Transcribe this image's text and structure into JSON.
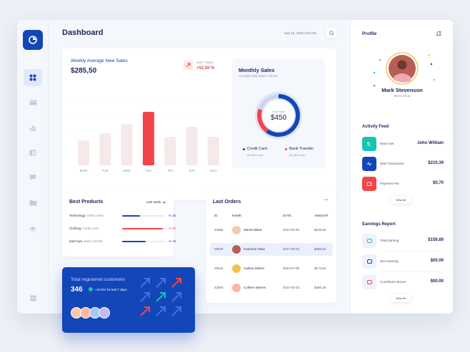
{
  "header": {
    "title": "Dashboard",
    "date": "Sep 12, 2020 3:53 AM"
  },
  "sidebar": {
    "items": [
      {
        "icon": "grid-icon",
        "active": true
      },
      {
        "icon": "card-icon"
      },
      {
        "icon": "bar-chart-icon"
      },
      {
        "icon": "layout-icon"
      },
      {
        "icon": "chat-icon"
      },
      {
        "icon": "folder-icon"
      },
      {
        "icon": "layers-icon"
      },
      {
        "icon": "logout-icon"
      }
    ]
  },
  "weekly": {
    "title": "Weekly Average New Sales",
    "amount": "$285,50",
    "last_label": "Last 7 Days",
    "last_change": "+52,50 %",
    "chart_data": {
      "type": "bar",
      "categories": [
        "MON",
        "TUE",
        "WED",
        "THU",
        "FRI",
        "SAT",
        "SUN"
      ],
      "values": [
        35,
        45,
        58,
        75,
        40,
        54,
        40
      ],
      "highlight": "THU",
      "ylim": [
        0,
        100
      ]
    }
  },
  "monthly": {
    "title": "Monthly Sales",
    "subtitle": "Average total sales +25,5%",
    "center_label": "Total Sale",
    "center_value": "$450",
    "legend": [
      {
        "name": "Credit Card",
        "value": "55,45% over",
        "color": "#1346b8"
      },
      {
        "name": "Bank Transfer",
        "value": "55,45% over",
        "color": "#f2454a"
      }
    ],
    "chart_data": {
      "type": "pie",
      "series": [
        {
          "name": "Credit Card",
          "value": 60
        },
        {
          "name": "Bank Transfer",
          "value": 20
        },
        {
          "name": "Other",
          "value": 20
        }
      ]
    }
  },
  "best_products": {
    "title": "Best Products",
    "filter": "Last week",
    "items": [
      {
        "name": "Technology",
        "category": "Direct sales",
        "value": "% 25",
        "fill": 0.42,
        "color": "#1346b8"
      },
      {
        "name": "Clothing",
        "category": "Credit card",
        "value": "% 62",
        "fill": 0.95,
        "color": "#f2454a"
      },
      {
        "name": "Kids toys",
        "category": "Bank transfer",
        "value": "% 34",
        "fill": 0.55,
        "color": "#1346b8"
      }
    ]
  },
  "registered": {
    "title": "Total registered customers",
    "count": "346",
    "change": "+10.5% for last 7 days"
  },
  "last_orders": {
    "title": "Last Orders",
    "more": "•••",
    "columns": [
      "ID",
      "NAME",
      "DATE",
      "AMOUNT"
    ],
    "rows": [
      {
        "id": "34565",
        "name": "Mervin Black",
        "date": "2017-02-30",
        "amount": "$125,50",
        "highlight": false
      },
      {
        "id": "25675",
        "name": "Cameron Stew",
        "date": "2017-03-23",
        "amount": "$256,84",
        "highlight": true
      },
      {
        "id": "29122",
        "name": "Audrey Wilson",
        "date": "2014-07-06",
        "amount": "$174,54",
        "highlight": false
      },
      {
        "id": "43293",
        "name": "Colleen Warren",
        "date": "2017-04-03",
        "amount": "$450,25",
        "highlight": false
      }
    ]
  },
  "profile": {
    "title": "Profile",
    "name": "Mark Stevenson",
    "shop": "Mima Shop"
  },
  "activity": {
    "title": "Activity Feed",
    "items": [
      {
        "label": "New User",
        "value": "John William",
        "color": "#17c3b2",
        "icon": "user-icon"
      },
      {
        "label": "New Transaction",
        "value": "$210,39",
        "color": "#1346b8",
        "icon": "pulse-icon"
      },
      {
        "label": "Payment Fee",
        "value": "$0,70",
        "color": "#f2454a",
        "icon": "wallet-icon"
      }
    ],
    "view_all": "View All"
  },
  "earnings": {
    "title": "Earnings Report",
    "items": [
      {
        "label": "Total Earning",
        "value": "$159.89",
        "icon": "chat-money-icon",
        "color": "#17c3b2"
      },
      {
        "label": "Item Earning",
        "value": "$00.00",
        "icon": "heart-icon",
        "color": "#1346b8"
      },
      {
        "label": "Contributor Bonus",
        "value": "$00.00",
        "icon": "people-icon",
        "color": "#f2454a"
      }
    ],
    "view_all": "View All"
  }
}
